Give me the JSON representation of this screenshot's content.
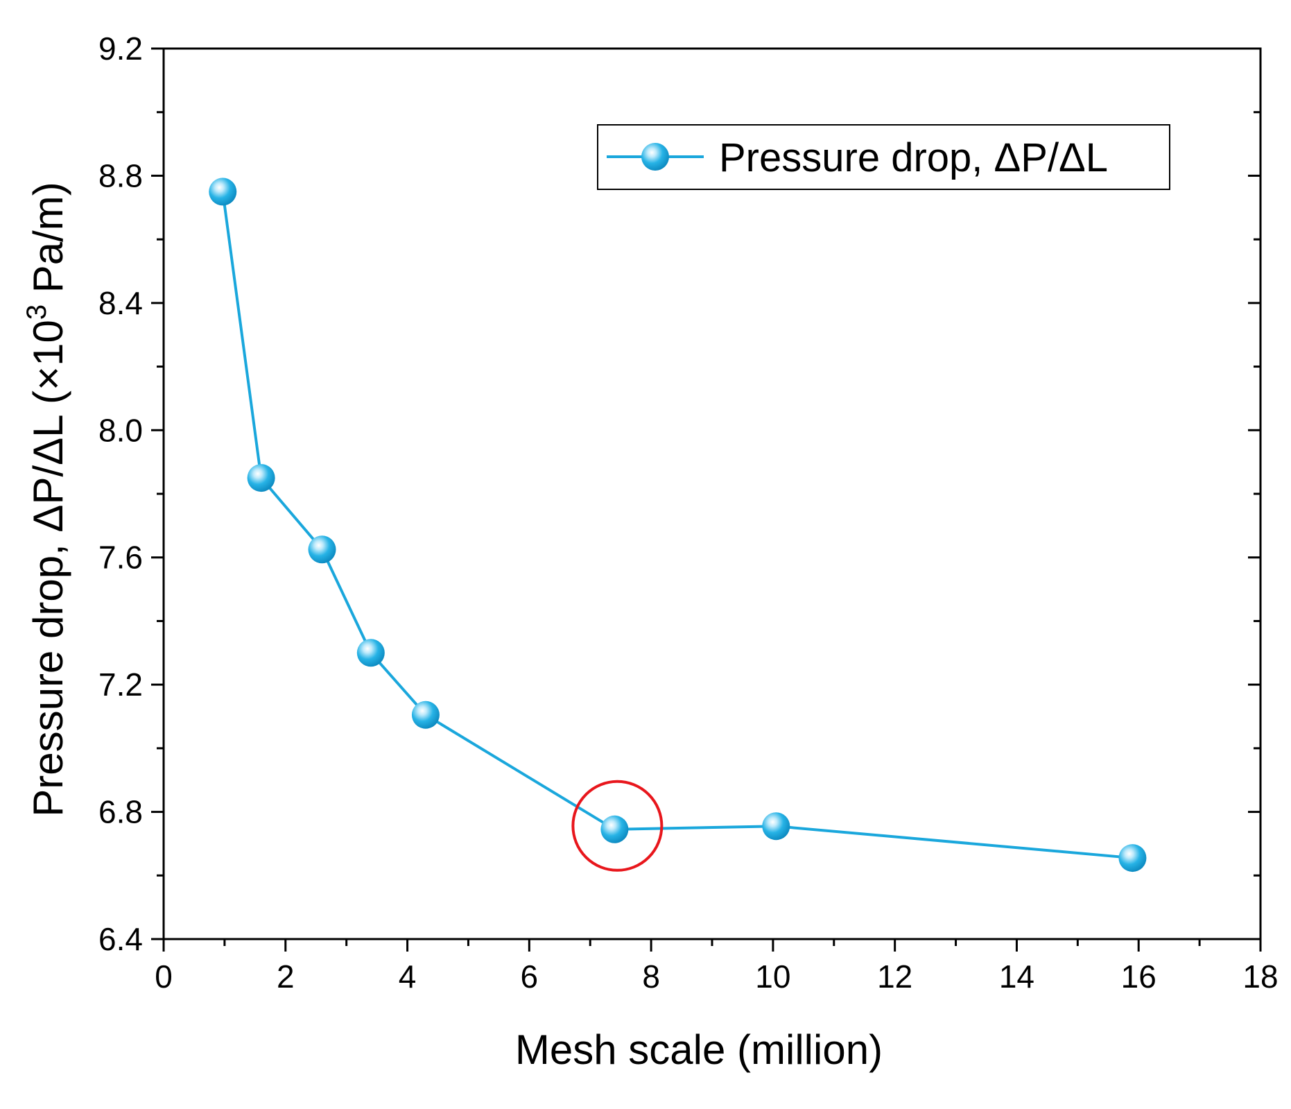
{
  "chart_data": {
    "type": "line",
    "title": "",
    "xlabel": "Mesh scale (million)",
    "ylabel_main": "Pressure drop, ΔP/ΔL (×10",
    "ylabel_sup": "3",
    "ylabel_tail": " Pa/m)",
    "xlim": [
      0,
      18
    ],
    "ylim": [
      6.4,
      9.2
    ],
    "xticks": [
      0,
      2,
      4,
      6,
      8,
      10,
      12,
      14,
      16,
      18
    ],
    "xtick_labels": [
      "0",
      "2",
      "4",
      "6",
      "8",
      "10",
      "12",
      "14",
      "16",
      "18"
    ],
    "yticks": [
      6.4,
      6.8,
      7.2,
      7.6,
      8.0,
      8.4,
      8.8,
      9.2
    ],
    "ytick_labels": [
      "6.4",
      "6.8",
      "7.2",
      "7.6",
      "8.0",
      "8.4",
      "8.8",
      "9.2"
    ],
    "legend_position": "top-right",
    "series": [
      {
        "name": "Pressure drop, ΔP/ΔL",
        "color": "#1aa7dc",
        "x": [
          0.97,
          1.6,
          2.6,
          3.4,
          4.3,
          7.4,
          10.05,
          15.9
        ],
        "y": [
          8.75,
          7.85,
          7.625,
          7.3,
          7.105,
          6.745,
          6.755,
          6.655
        ]
      }
    ],
    "annotation": {
      "type": "circle",
      "x": 7.4,
      "y": 6.745,
      "color": "#e8161c"
    }
  }
}
